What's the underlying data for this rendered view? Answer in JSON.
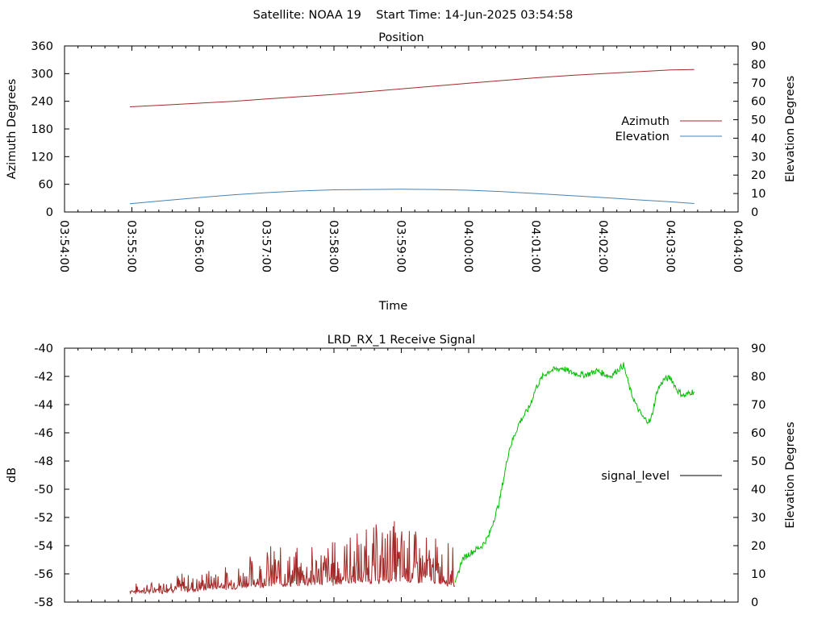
{
  "header": {
    "text": "Satellite: NOAA 19    Start Time: 14-Jun-2025 03:54:58"
  },
  "chart_data": [
    {
      "type": "line",
      "title": "Position",
      "xlabel": "Time",
      "ylabel": "Azimuth Degrees",
      "y2label": "Elevation Degrees",
      "x_ticks": [
        "03:54:00",
        "03:55:00",
        "03:56:00",
        "03:57:00",
        "03:58:00",
        "03:59:00",
        "04:00:00",
        "04:01:00",
        "04:02:00",
        "04:03:00",
        "04:04:00"
      ],
      "xlim_minutes": [
        0,
        10
      ],
      "ylim": [
        0,
        360
      ],
      "y_ticks": [
        "0",
        "60",
        "120",
        "180",
        "240",
        "300",
        "360"
      ],
      "y2lim": [
        0,
        90
      ],
      "y2_ticks": [
        "0",
        "10",
        "20",
        "30",
        "40",
        "50",
        "60",
        "70",
        "80",
        "90"
      ],
      "legend_position": "right",
      "series": [
        {
          "name": "Azimuth",
          "axis": "y",
          "color": "#a52a2a",
          "x_minutes": [
            0.97,
            1.5,
            2.0,
            2.5,
            3.0,
            3.5,
            4.0,
            4.5,
            5.0,
            5.5,
            6.0,
            6.5,
            7.0,
            7.5,
            8.0,
            8.5,
            9.0,
            9.35
          ],
          "values": [
            228,
            232,
            236,
            240,
            245,
            250,
            255,
            261,
            267,
            273,
            279,
            285,
            291,
            296,
            300,
            304,
            308,
            309
          ]
        },
        {
          "name": "Elevation",
          "axis": "y2",
          "color": "#4682b4",
          "x_minutes": [
            0.97,
            1.5,
            2.0,
            2.5,
            3.0,
            3.5,
            4.0,
            4.5,
            5.0,
            5.5,
            6.0,
            6.5,
            7.0,
            7.5,
            8.0,
            8.5,
            9.0,
            9.35
          ],
          "values": [
            4.5,
            6.2,
            7.8,
            9.3,
            10.5,
            11.4,
            12.0,
            12.2,
            12.3,
            12.2,
            11.8,
            11.0,
            10.0,
            8.9,
            7.8,
            6.6,
            5.5,
            4.6
          ]
        }
      ]
    },
    {
      "type": "line",
      "title": "LRD_RX_1 Receive Signal",
      "xlabel": "",
      "ylabel": "dB",
      "y2label": "Elevation Degrees",
      "xlim_minutes": [
        0,
        10
      ],
      "ylim": [
        -58,
        -40
      ],
      "y_ticks": [
        "-40",
        "-42",
        "-44",
        "-46",
        "-48",
        "-50",
        "-52",
        "-54",
        "-56",
        "-58"
      ],
      "y2lim": [
        0,
        90
      ],
      "y2_ticks": [
        "0",
        "10",
        "20",
        "30",
        "40",
        "50",
        "60",
        "70",
        "80",
        "90"
      ],
      "legend_position": "right",
      "series": [
        {
          "name": "signal_level",
          "axis": "y",
          "color": "#000000",
          "segments": [
            {
              "color": "#a52a2a",
              "noisy": true,
              "x_minutes": [
                0.97,
                1.3,
                1.6,
                1.9,
                2.2,
                2.5,
                2.8,
                3.1,
                3.4,
                3.7,
                4.0,
                4.3,
                4.6,
                4.9,
                5.2,
                5.5,
                5.8
              ],
              "floor": [
                -57.3,
                -57.3,
                -57.2,
                -57.2,
                -57.0,
                -57.0,
                -56.9,
                -56.8,
                -56.8,
                -56.7,
                -56.7,
                -56.6,
                -56.6,
                -56.5,
                -56.5,
                -56.6,
                -56.8
              ],
              "peak": [
                -56.8,
                -56.6,
                -55.8,
                -56.0,
                -55.6,
                -55.4,
                -54.5,
                -53.8,
                -54.2,
                -53.7,
                -53.4,
                -52.8,
                -52.4,
                -52.0,
                -52.8,
                -53.4,
                -53.8
              ]
            },
            {
              "color": "#00c000",
              "noisy": false,
              "x_minutes": [
                5.8,
                5.9,
                6.0,
                6.1,
                6.2,
                6.3,
                6.45,
                6.6,
                6.75,
                6.9,
                7.0,
                7.1,
                7.2,
                7.3,
                7.4,
                7.5,
                7.6,
                7.7,
                7.8,
                7.9,
                8.0,
                8.1,
                8.2,
                8.3,
                8.4,
                8.5,
                8.6,
                8.7,
                8.8,
                8.9,
                9.0,
                9.1,
                9.2,
                9.3,
                9.35
              ],
              "values": [
                -56.8,
                -55.0,
                -54.6,
                -54.3,
                -54.0,
                -53.3,
                -51.0,
                -47.2,
                -45.3,
                -44.2,
                -42.8,
                -42.0,
                -41.6,
                -41.5,
                -41.4,
                -41.7,
                -41.8,
                -41.9,
                -41.8,
                -41.6,
                -41.8,
                -42.0,
                -41.6,
                -41.2,
                -43.0,
                -44.2,
                -45.0,
                -45.2,
                -43.0,
                -42.2,
                -42.1,
                -43.0,
                -43.4,
                -43.1,
                -43.1
              ]
            }
          ]
        }
      ]
    }
  ]
}
